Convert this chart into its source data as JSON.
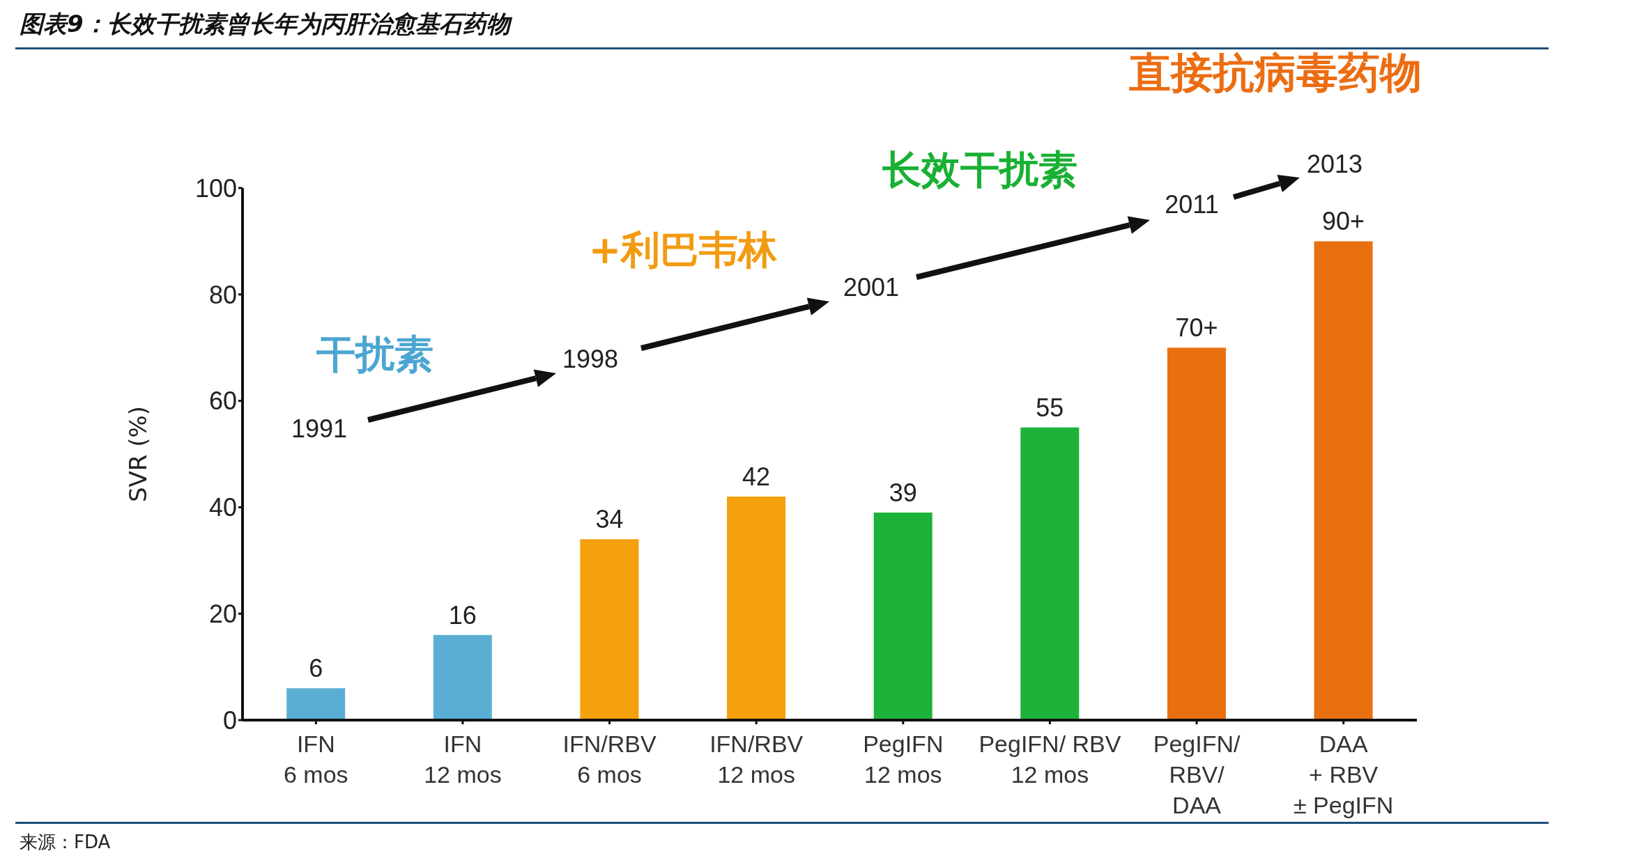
{
  "chart_data": {
    "type": "bar",
    "title": "图表9：长效干扰素曾长年为丙肝治愈基石药物",
    "ylabel": "SVR (%)",
    "categories": [
      "IFN\n6 mos",
      "IFN\n12 mos",
      "IFN/RBV\n6 mos",
      "IFN/RBV\n12 mos",
      "PegIFN\n12 mos",
      "PegIFN/ RBV\n12 mos",
      "PegIFN/\nRBV/\nDAA",
      "DAA\n+ RBV\n± PegIFN"
    ],
    "values": [
      6,
      16,
      34,
      42,
      39,
      55,
      70,
      90
    ],
    "value_labels": [
      "6",
      "16",
      "34",
      "42",
      "39",
      "55",
      "70+",
      "90+"
    ],
    "colors": [
      "#5aaed3",
      "#5aaed3",
      "#f5a00d",
      "#f5a00d",
      "#1db33a",
      "#1db33a",
      "#e8700f",
      "#e8700f"
    ],
    "ylim": [
      0,
      100
    ],
    "yticks": [
      0,
      20,
      40,
      60,
      80,
      100
    ],
    "grid": false,
    "legend": false,
    "annotations": [
      "干扰素",
      "+利巴韦林",
      "长效干扰素",
      "直接抗病毒药物",
      "1991",
      "1998",
      "2001",
      "2011",
      "2013",
      "来源：FDA"
    ]
  }
}
